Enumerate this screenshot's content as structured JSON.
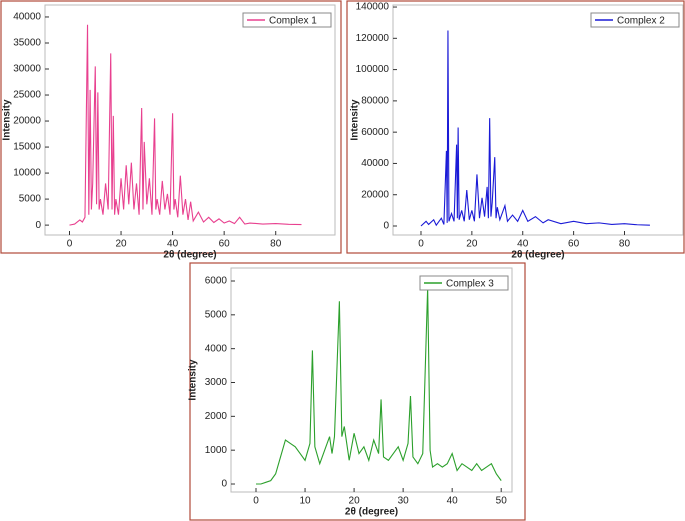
{
  "chart_data": [
    {
      "type": "line",
      "xlabel": "2θ (degree)",
      "ylabel": "Intensity",
      "xlim": [
        -9.5,
        103
      ],
      "ylim": [
        -1900,
        42300
      ],
      "xticks": [
        0,
        20,
        40,
        60,
        80
      ],
      "yticks": [
        0,
        5000,
        10000,
        15000,
        20000,
        25000,
        30000,
        35000,
        40000
      ],
      "legend": "upper right",
      "x": [
        0,
        2,
        4,
        5,
        6,
        7,
        7.5,
        8,
        8.5,
        9,
        10,
        10.5,
        11,
        11.5,
        12,
        13,
        14,
        15,
        16,
        16.5,
        17,
        17.5,
        18,
        19,
        20,
        21,
        22,
        23,
        24,
        25,
        26,
        27,
        28,
        28.5,
        29,
        30,
        31,
        32,
        33,
        33.5,
        34,
        35,
        36,
        37,
        38,
        39,
        40,
        40.5,
        41,
        42,
        43,
        44,
        45,
        46,
        47,
        48,
        50,
        52,
        54,
        56,
        58,
        60,
        62,
        64,
        66,
        68,
        70,
        75,
        80,
        85,
        90
      ],
      "series": [
        {
          "name": "Complex 1",
          "color": "#e8408f",
          "values": [
            0,
            200,
            1000,
            600,
            1500,
            38500,
            2000,
            26000,
            3000,
            8000,
            30500,
            4000,
            25500,
            3000,
            5000,
            2000,
            8000,
            3000,
            33000,
            3000,
            21000,
            2000,
            5000,
            2000,
            9000,
            3000,
            11500,
            4000,
            12000,
            3000,
            8000,
            2000,
            22500,
            3000,
            16000,
            4000,
            9000,
            2000,
            20500,
            3000,
            5000,
            2000,
            8500,
            3000,
            6000,
            2000,
            21500,
            3000,
            5000,
            1500,
            9500,
            2000,
            5000,
            1000,
            4500,
            800,
            2500,
            600,
            1500,
            500,
            1200,
            400,
            800,
            300,
            1500,
            200,
            400,
            200,
            300,
            150,
            100
          ]
        }
      ]
    },
    {
      "type": "line",
      "xlabel": "2θ (degree)",
      "ylabel": "Intensity",
      "xlim": [
        -11,
        103
      ],
      "ylim": [
        -5750,
        141300
      ],
      "xticks": [
        0,
        20,
        40,
        60,
        80
      ],
      "yticks": [
        0,
        20000,
        40000,
        60000,
        80000,
        100000,
        120000,
        140000
      ],
      "legend": "upper right",
      "x": [
        0,
        2,
        3,
        5,
        6,
        8,
        9,
        10,
        10.3,
        10.6,
        11,
        12,
        13,
        14,
        14.3,
        14.6,
        15,
        16,
        17,
        18,
        19,
        20,
        21,
        22,
        23,
        24,
        25,
        26,
        26.5,
        27,
        27.5,
        28,
        29,
        29.5,
        30,
        31,
        33,
        34,
        36,
        38,
        40,
        42,
        45,
        48,
        50,
        55,
        60,
        65,
        70,
        75,
        80,
        85,
        90
      ],
      "series": [
        {
          "name": "Complex 2",
          "color": "#1a1ad6",
          "values": [
            0,
            3000,
            1000,
            4000,
            500,
            5000,
            1000,
            48000,
            2000,
            125000,
            3000,
            8000,
            3000,
            52000,
            5000,
            63000,
            4000,
            10000,
            3000,
            23000,
            4000,
            10000,
            3000,
            33000,
            5000,
            18000,
            6000,
            25000,
            5000,
            69000,
            6000,
            15000,
            44000,
            5000,
            12000,
            4000,
            13000,
            3000,
            7000,
            3000,
            10000,
            3000,
            6000,
            2000,
            4000,
            1500,
            3000,
            1500,
            2000,
            1000,
            1500,
            800,
            500
          ]
        }
      ]
    },
    {
      "type": "line",
      "xlabel": "2θ (degree)",
      "ylabel": "Intensity",
      "xlim": [
        -5.1,
        52.2
      ],
      "ylim": [
        -236,
        6384
      ],
      "xticks": [
        0,
        10,
        20,
        30,
        40,
        50
      ],
      "yticks": [
        0,
        1000,
        2000,
        3000,
        4000,
        5000,
        6000
      ],
      "legend": "upper right",
      "x": [
        0,
        1,
        2,
        3,
        4,
        5,
        6,
        7,
        8,
        9,
        10,
        11,
        11.5,
        12,
        13,
        14,
        15,
        15.5,
        16,
        17,
        17.5,
        18,
        19,
        20,
        21,
        22,
        23,
        24,
        25,
        25.5,
        26,
        27,
        28,
        29,
        30,
        31,
        31.5,
        32,
        33,
        34,
        35,
        35.5,
        36,
        37,
        38,
        39,
        40,
        41,
        42,
        43,
        44,
        45,
        46,
        47,
        48,
        49,
        50
      ],
      "series": [
        {
          "name": "Complex 3",
          "color": "#2ca02c",
          "values": [
            0,
            0,
            50,
            100,
            300,
            800,
            1300,
            1200,
            1100,
            900,
            700,
            1200,
            3950,
            1100,
            600,
            1000,
            1400,
            900,
            1400,
            5400,
            1400,
            1700,
            700,
            1500,
            900,
            1100,
            700,
            1300,
            900,
            2500,
            800,
            700,
            900,
            1100,
            700,
            1200,
            2600,
            800,
            600,
            900,
            5800,
            1000,
            500,
            600,
            500,
            600,
            900,
            400,
            600,
            500,
            400,
            600,
            400,
            500,
            600,
            300,
            100
          ]
        }
      ]
    }
  ]
}
